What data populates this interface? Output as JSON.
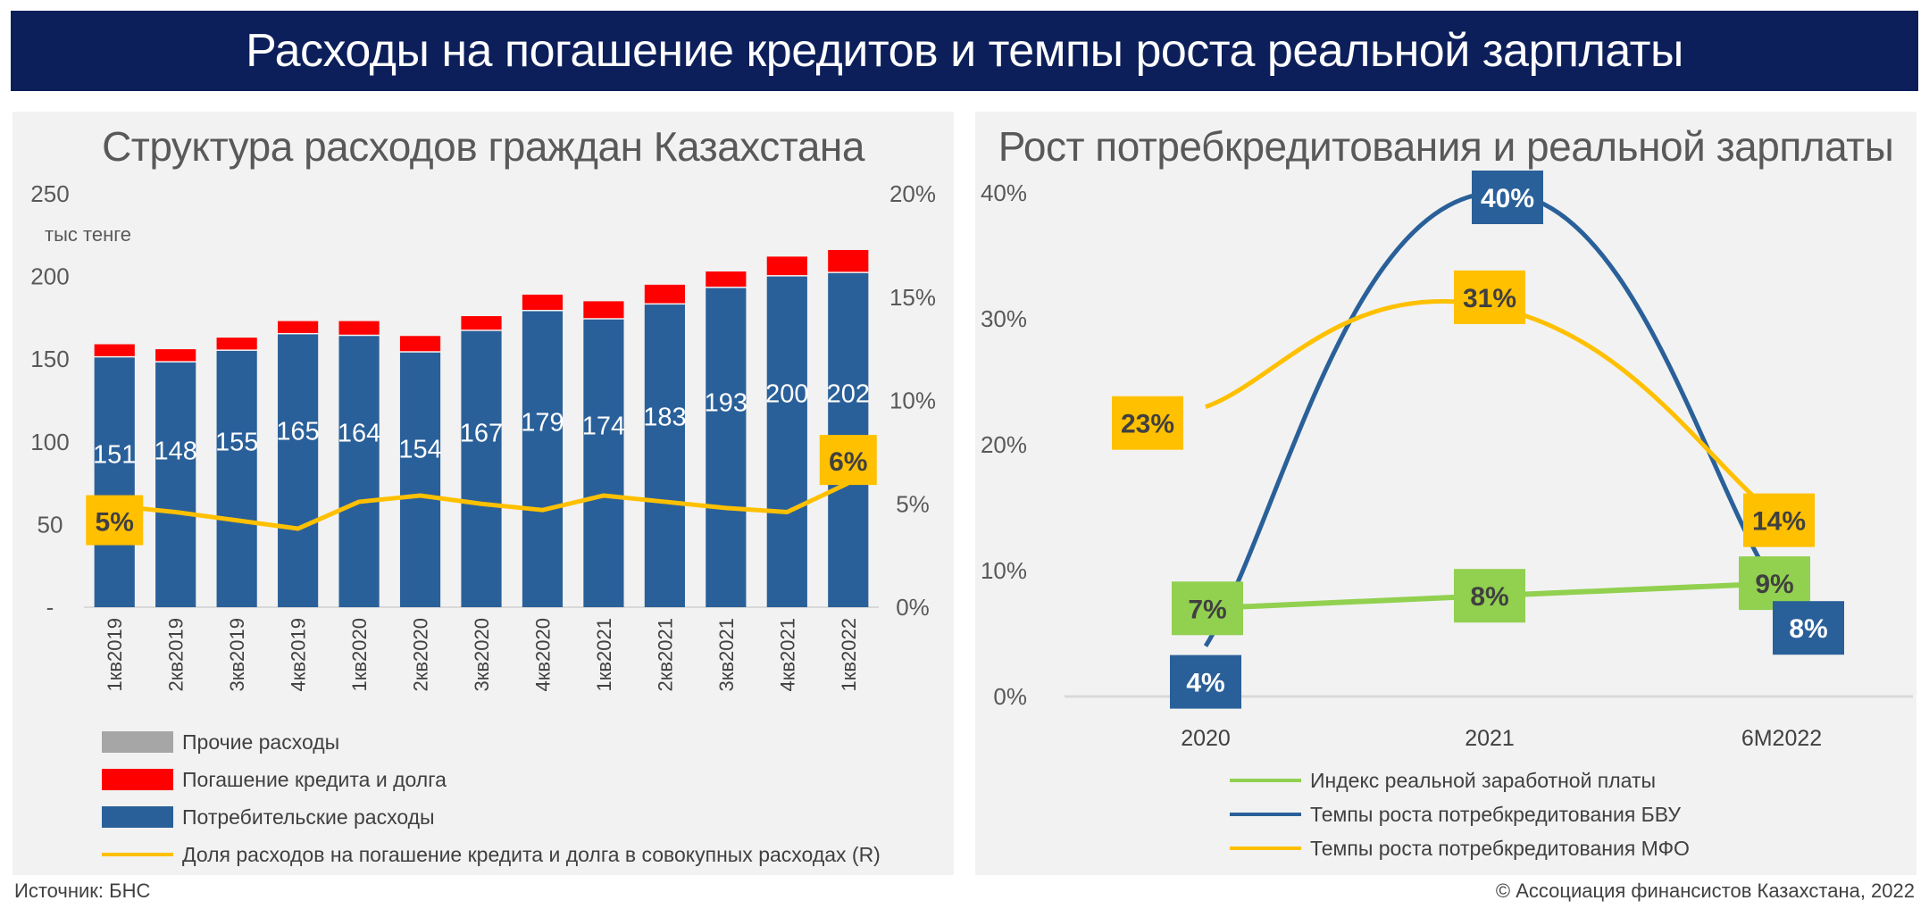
{
  "title": "Расходы на погашение кредитов и темпы роста реальной зарплаты",
  "source": "Источник: БНС",
  "copyright": "© Ассоциация финансистов Казахстана, 2022",
  "colors": {
    "banner": "#0c1f5a",
    "blue": "#2a6099",
    "red": "#ff0000",
    "gold": "#ffc000",
    "green": "#92d050",
    "grey": "#a6a6a6"
  },
  "chart_data": [
    {
      "type": "bar",
      "stacked": true,
      "title": "Структура расходов граждан Казахстана",
      "ylabel": "тыс тенге",
      "ylim": [
        0,
        250
      ],
      "yticks": [
        "-",
        "50",
        "100",
        "150",
        "200",
        "250"
      ],
      "y2lim": [
        0,
        20
      ],
      "y2ticks": [
        "0%",
        "5%",
        "10%",
        "15%",
        "20%"
      ],
      "categories": [
        "1кв2019",
        "2кв2019",
        "3кв2019",
        "4кв2019",
        "1кв2020",
        "2кв2020",
        "3кв2020",
        "4кв2020",
        "1кв2021",
        "2кв2021",
        "3кв2021",
        "4кв2021",
        "1кв2022"
      ],
      "series": [
        {
          "name": "Потребительские расходы",
          "color": "#2a6099",
          "values": [
            151,
            148,
            155,
            165,
            164,
            154,
            167,
            179,
            174,
            183,
            193,
            200,
            202
          ],
          "labels": [
            "151",
            "148",
            "155",
            "165",
            "164",
            "154",
            "167",
            "179",
            "174",
            "183",
            "193",
            "200",
            "202"
          ]
        },
        {
          "name": "Погашение кредита и долга",
          "color": "#ff0000",
          "values": [
            8,
            8,
            8,
            8,
            9,
            10,
            9,
            10,
            11,
            12,
            10,
            12,
            14
          ]
        },
        {
          "name": "Прочие расходы",
          "color": "#a6a6a6",
          "values": [
            0,
            0,
            0,
            0,
            0,
            0,
            0,
            0,
            0,
            0,
            0,
            0,
            0
          ]
        },
        {
          "name": "Доля расходов на погашение кредита и долга в совокупных расходах (R)",
          "type": "line",
          "axis": "right",
          "color": "#ffc000",
          "values": [
            4.9,
            4.6,
            4.2,
            3.8,
            5.1,
            5.4,
            5.0,
            4.7,
            5.4,
            5.1,
            4.8,
            4.6,
            6.0
          ]
        }
      ],
      "line_labels": {
        "first": "5%",
        "last": "6%"
      },
      "legend": [
        "Прочие расходы",
        "Погашение кредита и долга",
        "Потребительские расходы",
        "Доля расходов на погашение кредита и долга в совокупных расходах (R)"
      ],
      "legend_placement": "bottom"
    },
    {
      "type": "line",
      "smooth": true,
      "title": "Рост потребкредитования и реальной зарплаты",
      "ylim": [
        0,
        40
      ],
      "yticks": [
        "0%",
        "10%",
        "20%",
        "30%",
        "40%"
      ],
      "categories": [
        "2020",
        "2021",
        "6M2022"
      ],
      "series": [
        {
          "name": "Индекс реальной заработной платы",
          "color": "#92d050",
          "values": [
            7,
            8,
            9
          ],
          "labels": [
            "7%",
            "8%",
            "9%"
          ]
        },
        {
          "name": "Темпы роста потребкредитования БВУ",
          "color": "#2a6099",
          "values": [
            4,
            40,
            8
          ],
          "labels": [
            "4%",
            "40%",
            "8%"
          ]
        },
        {
          "name": "Темпы роста потребкредитования МФО",
          "color": "#ffc000",
          "values": [
            23,
            31,
            14
          ],
          "labels": [
            "23%",
            "31%",
            "14%"
          ]
        }
      ],
      "legend_placement": "bottom"
    }
  ]
}
